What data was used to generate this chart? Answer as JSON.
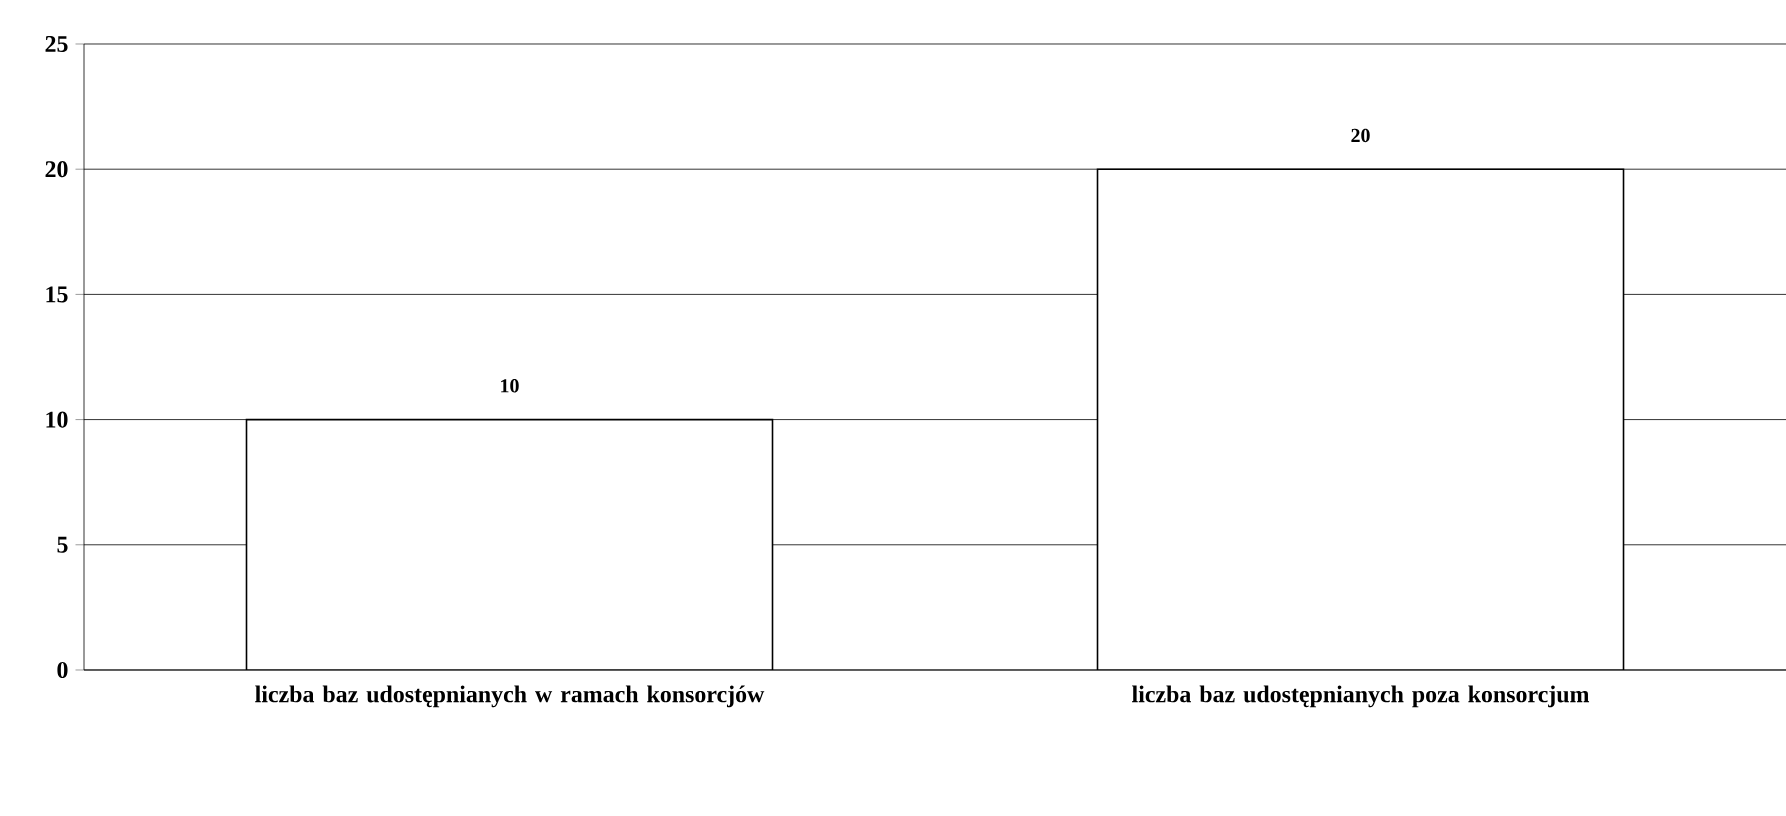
{
  "chart_data": {
    "type": "bar",
    "categories": [
      "liczba baz udostępnianych w ramach konsorcjów",
      "liczba baz udostępnianych poza konsorcjum"
    ],
    "values": [
      10,
      20
    ],
    "color": "#ffffff",
    "ylim": [
      0,
      25
    ],
    "yticks": [
      0,
      5,
      10,
      15,
      20,
      25
    ],
    "grid": "y",
    "data_labels": true
  }
}
